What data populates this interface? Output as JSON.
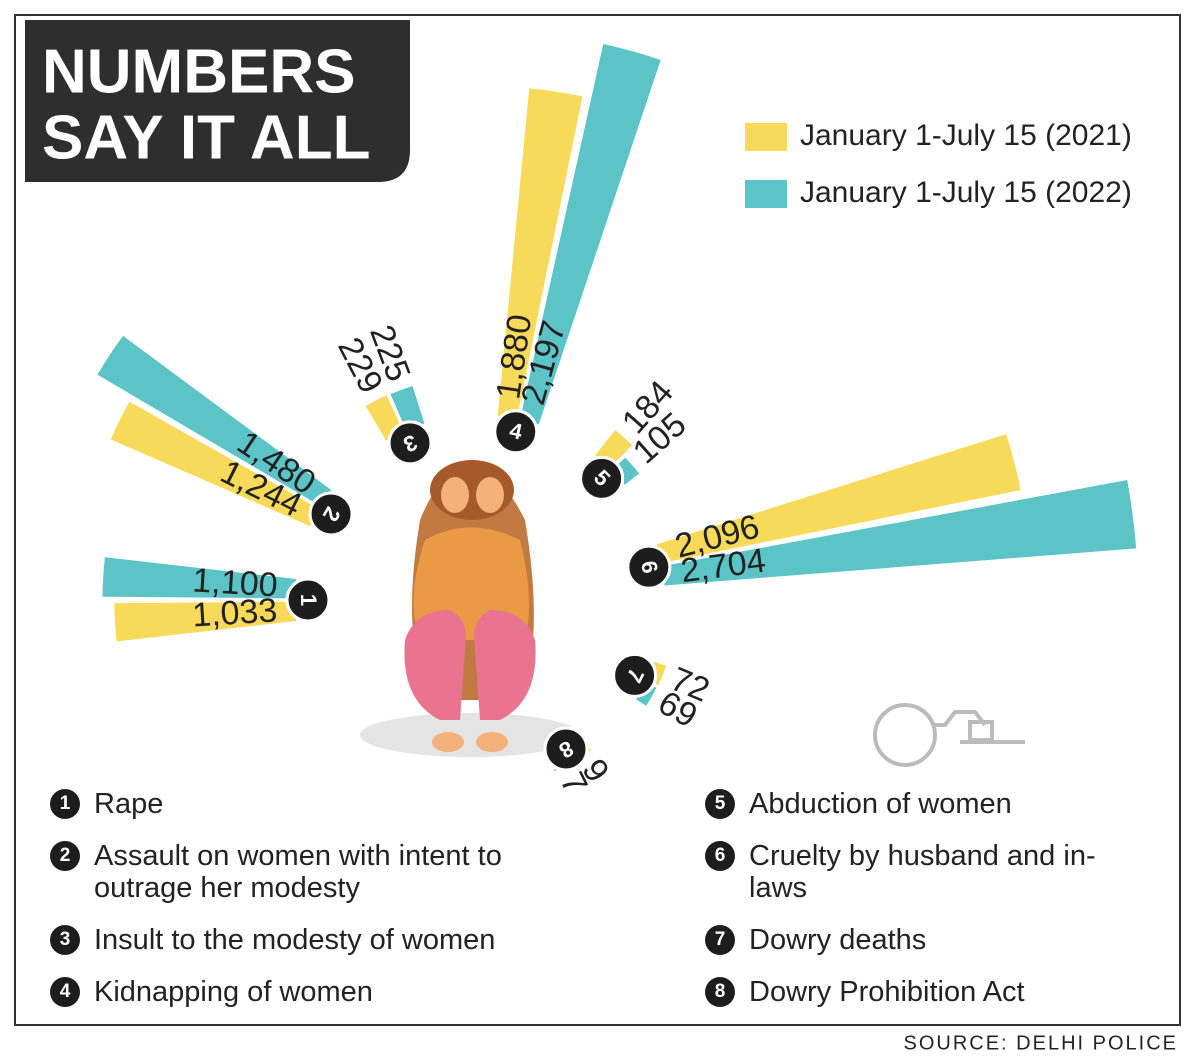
{
  "chart_data": {
    "type": "radial-bar",
    "title": [
      "NUMBERS",
      "SAY IT ALL"
    ],
    "category_numbers": [
      1,
      2,
      3,
      4,
      5,
      6,
      7,
      8
    ],
    "categories": [
      "Rape",
      "Assault on women with intent to outrage her modesty",
      "Insult to the modesty of women",
      "Kidnapping of women",
      "Abduction of women",
      "Cruelty by husband and in-laws",
      "Dowry deaths",
      "Dowry Prohibition Act"
    ],
    "series": [
      {
        "name": "January 1-July 15 (2021)",
        "color": "#f8da5b",
        "values": [
          1033,
          1244,
          229,
          1880,
          184,
          2096,
          72,
          9
        ],
        "value_labels": [
          "1,033",
          "1,244",
          "229",
          "1,880",
          "184",
          "2,096",
          "72",
          "9"
        ]
      },
      {
        "name": "January 1-July 15 (2022)",
        "color": "#5cc4c7",
        "values": [
          1100,
          1480,
          225,
          2197,
          105,
          2704,
          69,
          7
        ],
        "value_labels": [
          "1,100",
          "1,480",
          "225",
          "2,197",
          "105",
          "2,704",
          "69",
          "7"
        ]
      }
    ],
    "source": "SOURCE: DELHI POLICE"
  }
}
